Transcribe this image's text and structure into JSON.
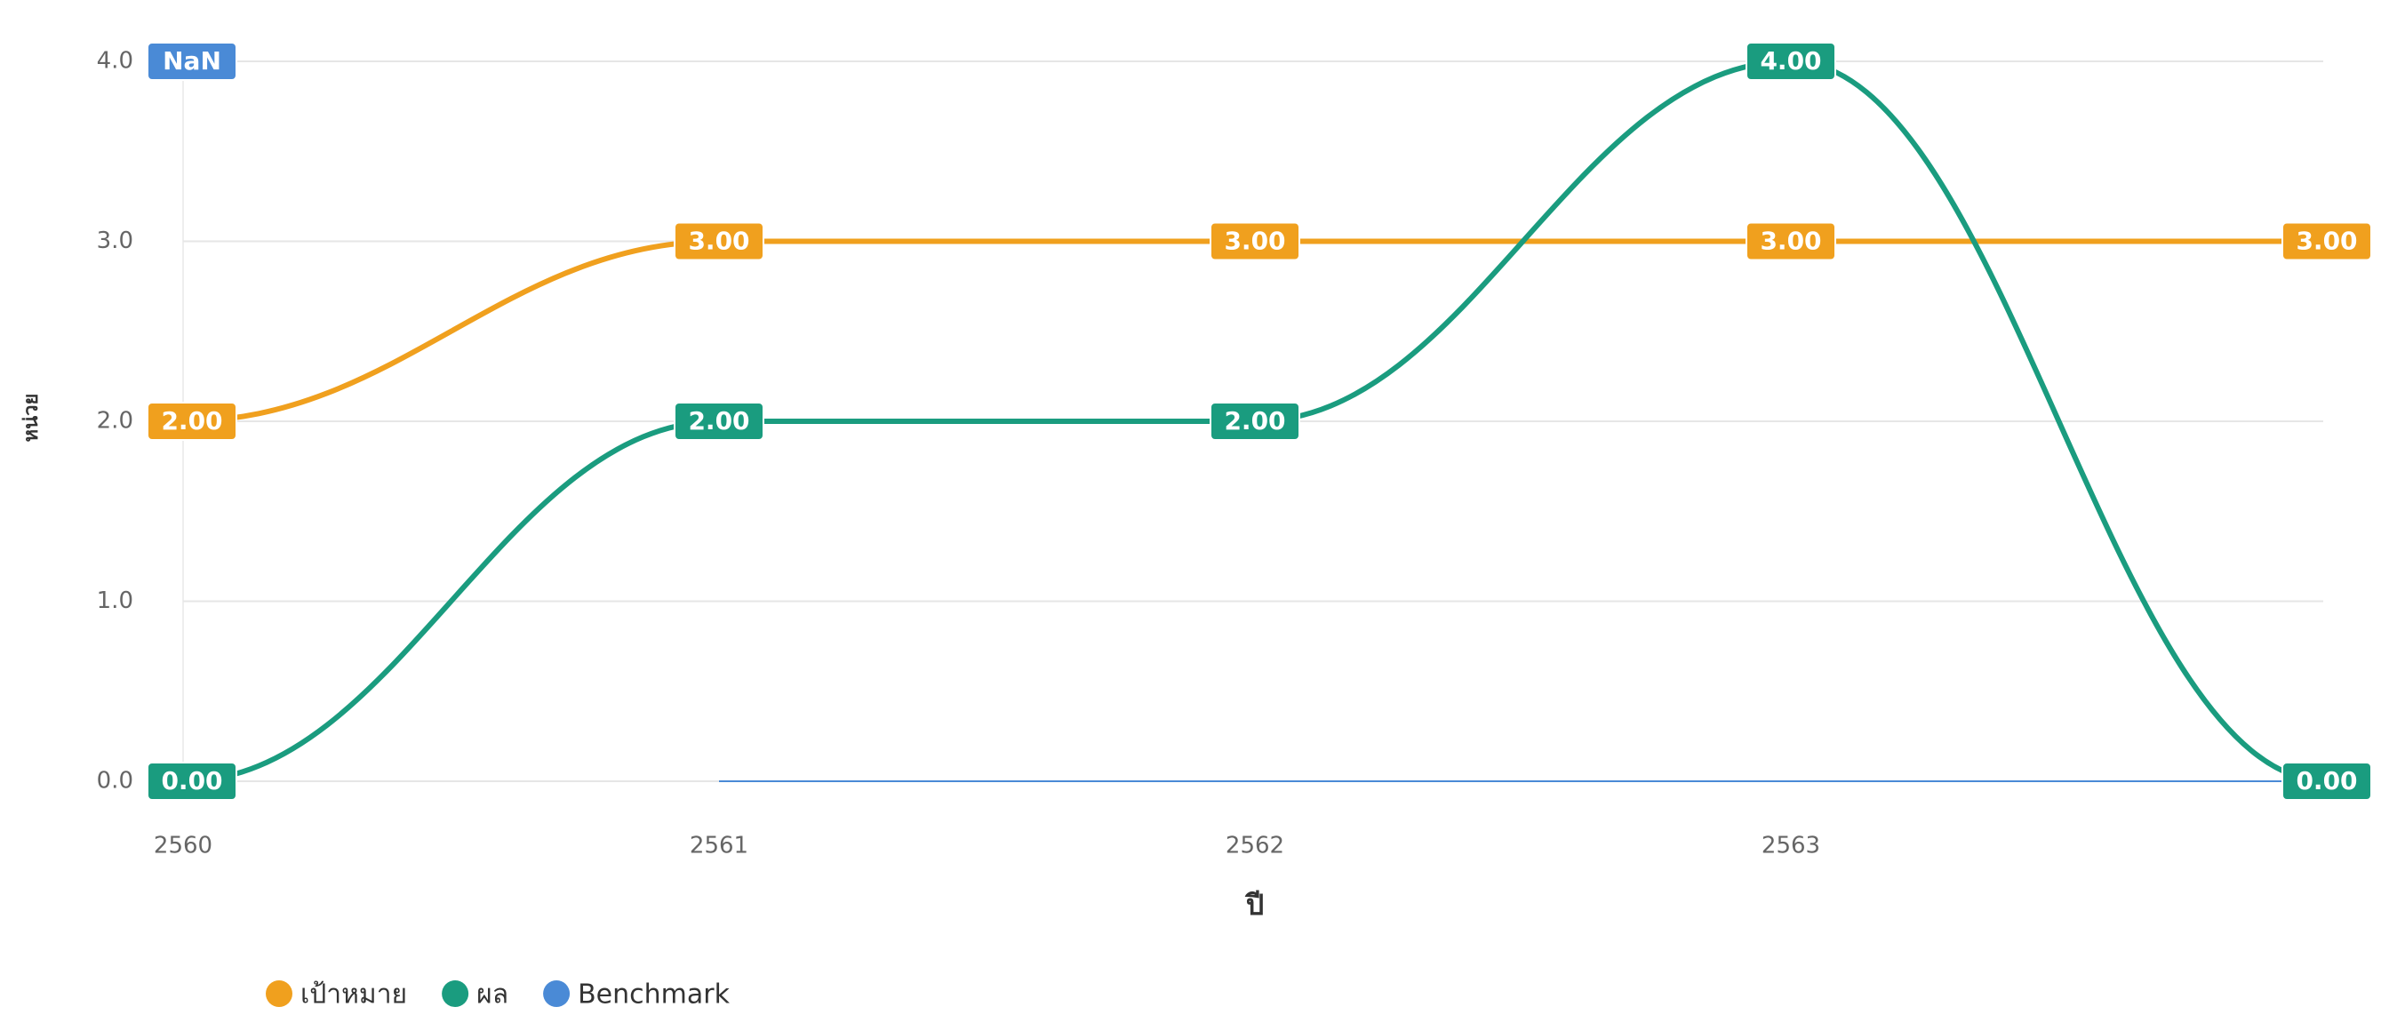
{
  "chart_data": {
    "type": "line",
    "categories": [
      "2560",
      "2561",
      "2562",
      "2563",
      null
    ],
    "series": [
      {
        "name": "เป้าหมาย",
        "color": "#f0a01e",
        "values": [
          2,
          3,
          3,
          3,
          3
        ],
        "value_labels": [
          "2.00",
          "3.00",
          "3.00",
          "3.00",
          "3.00"
        ]
      },
      {
        "name": "ผล",
        "color": "#1a9c7f",
        "values": [
          0,
          2,
          2,
          4,
          0
        ],
        "value_labels": [
          "0.00",
          "2.00",
          "2.00",
          "4.00",
          "0.00"
        ]
      },
      {
        "name": "Benchmark",
        "color": "#4a8ad6",
        "values": [
          null,
          0,
          0,
          0,
          0
        ],
        "value_labels": [
          "NaN",
          null,
          null,
          null,
          null
        ]
      }
    ],
    "ylim": [
      0,
      4
    ],
    "yticks": [
      {
        "value": 0,
        "label": "0.0"
      },
      {
        "value": 1,
        "label": "1.0"
      },
      {
        "value": 2,
        "label": "2.0"
      },
      {
        "value": 3,
        "label": "3.0"
      },
      {
        "value": 4,
        "label": "4.0"
      }
    ],
    "xlabel": "ปี",
    "ylabel": "หน่วย",
    "grid": true,
    "legend": "bottom-left"
  }
}
